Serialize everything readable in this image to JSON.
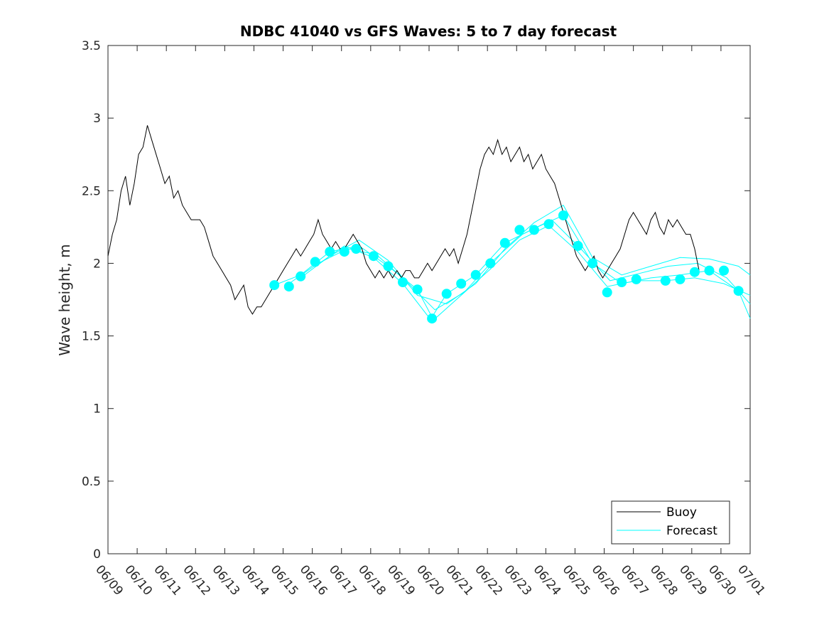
{
  "chart_data": {
    "type": "line",
    "title": "NDBC 41040 vs GFS Waves: 5 to 7 day forecast",
    "xlabel": "",
    "ylabel": "Wave height, m",
    "xlim": [
      "06/09",
      "07/01"
    ],
    "ylim": [
      0,
      3.5
    ],
    "x_ticks": [
      "06/09",
      "06/10",
      "06/11",
      "06/12",
      "06/13",
      "06/14",
      "06/15",
      "06/16",
      "06/17",
      "06/18",
      "06/19",
      "06/20",
      "06/21",
      "06/22",
      "06/23",
      "06/24",
      "06/25",
      "06/26",
      "06/27",
      "06/28",
      "06/29",
      "06/30",
      "07/01"
    ],
    "y_ticks": [
      "0",
      "0.5",
      "1",
      "1.5",
      "2",
      "2.5",
      "3",
      "3.5"
    ],
    "grid": false,
    "legend_position": "bottom-right",
    "colors": {
      "buoy": "#000000",
      "forecast": "#00ffff",
      "axes": "#262626"
    },
    "legend": [
      {
        "label": "Buoy",
        "color": "#000000"
      },
      {
        "label": "Forecast",
        "color": "#00ffff"
      }
    ],
    "series": [
      {
        "name": "Buoy",
        "color": "#000000",
        "points": [
          [
            0.0,
            2.05
          ],
          [
            0.15,
            2.2
          ],
          [
            0.3,
            2.3
          ],
          [
            0.45,
            2.5
          ],
          [
            0.6,
            2.6
          ],
          [
            0.75,
            2.4
          ],
          [
            0.9,
            2.55
          ],
          [
            1.05,
            2.75
          ],
          [
            1.2,
            2.8
          ],
          [
            1.35,
            2.95
          ],
          [
            1.5,
            2.85
          ],
          [
            1.65,
            2.75
          ],
          [
            1.8,
            2.65
          ],
          [
            1.95,
            2.55
          ],
          [
            2.1,
            2.6
          ],
          [
            2.25,
            2.45
          ],
          [
            2.4,
            2.5
          ],
          [
            2.55,
            2.4
          ],
          [
            2.7,
            2.35
          ],
          [
            2.85,
            2.3
          ],
          [
            3.0,
            2.3
          ],
          [
            3.15,
            2.3
          ],
          [
            3.3,
            2.25
          ],
          [
            3.45,
            2.15
          ],
          [
            3.6,
            2.05
          ],
          [
            3.75,
            2.0
          ],
          [
            3.9,
            1.95
          ],
          [
            4.05,
            1.9
          ],
          [
            4.2,
            1.85
          ],
          [
            4.35,
            1.75
          ],
          [
            4.5,
            1.8
          ],
          [
            4.65,
            1.85
          ],
          [
            4.8,
            1.7
          ],
          [
            4.95,
            1.65
          ],
          [
            5.1,
            1.7
          ],
          [
            5.25,
            1.7
          ],
          [
            5.4,
            1.75
          ],
          [
            5.55,
            1.8
          ],
          [
            5.7,
            1.85
          ],
          [
            5.85,
            1.9
          ],
          [
            6.0,
            1.95
          ],
          [
            6.15,
            2.0
          ],
          [
            6.3,
            2.05
          ],
          [
            6.45,
            2.1
          ],
          [
            6.6,
            2.05
          ],
          [
            6.75,
            2.1
          ],
          [
            6.9,
            2.15
          ],
          [
            7.05,
            2.2
          ],
          [
            7.2,
            2.3
          ],
          [
            7.35,
            2.2
          ],
          [
            7.5,
            2.15
          ],
          [
            7.65,
            2.1
          ],
          [
            7.8,
            2.15
          ],
          [
            7.95,
            2.1
          ],
          [
            8.1,
            2.1
          ],
          [
            8.25,
            2.15
          ],
          [
            8.4,
            2.2
          ],
          [
            8.55,
            2.15
          ],
          [
            8.7,
            2.1
          ],
          [
            8.85,
            2.0
          ],
          [
            9.0,
            1.95
          ],
          [
            9.15,
            1.9
          ],
          [
            9.3,
            1.95
          ],
          [
            9.45,
            1.9
          ],
          [
            9.6,
            1.95
          ],
          [
            9.75,
            1.9
          ],
          [
            9.9,
            1.95
          ],
          [
            10.05,
            1.9
          ],
          [
            10.2,
            1.95
          ],
          [
            10.35,
            1.95
          ],
          [
            10.5,
            1.9
          ],
          [
            10.65,
            1.9
          ],
          [
            10.8,
            1.95
          ],
          [
            10.95,
            2.0
          ],
          [
            11.1,
            1.95
          ],
          [
            11.25,
            2.0
          ],
          [
            11.4,
            2.05
          ],
          [
            11.55,
            2.1
          ],
          [
            11.7,
            2.05
          ],
          [
            11.85,
            2.1
          ],
          [
            12.0,
            2.0
          ],
          [
            12.15,
            2.1
          ],
          [
            12.3,
            2.2
          ],
          [
            12.45,
            2.35
          ],
          [
            12.6,
            2.5
          ],
          [
            12.75,
            2.65
          ],
          [
            12.9,
            2.75
          ],
          [
            13.05,
            2.8
          ],
          [
            13.2,
            2.75
          ],
          [
            13.35,
            2.85
          ],
          [
            13.5,
            2.75
          ],
          [
            13.65,
            2.8
          ],
          [
            13.8,
            2.7
          ],
          [
            13.95,
            2.75
          ],
          [
            14.1,
            2.8
          ],
          [
            14.25,
            2.7
          ],
          [
            14.4,
            2.75
          ],
          [
            14.55,
            2.65
          ],
          [
            14.7,
            2.7
          ],
          [
            14.85,
            2.75
          ],
          [
            15.0,
            2.65
          ],
          [
            15.15,
            2.6
          ],
          [
            15.3,
            2.55
          ],
          [
            15.45,
            2.45
          ],
          [
            15.6,
            2.35
          ],
          [
            15.75,
            2.25
          ],
          [
            15.9,
            2.15
          ],
          [
            16.05,
            2.05
          ],
          [
            16.2,
            2.0
          ],
          [
            16.35,
            1.95
          ],
          [
            16.5,
            2.0
          ],
          [
            16.65,
            2.05
          ],
          [
            16.8,
            1.95
          ],
          [
            16.95,
            1.9
          ],
          [
            17.1,
            1.95
          ],
          [
            17.25,
            2.0
          ],
          [
            17.4,
            2.05
          ],
          [
            17.55,
            2.1
          ],
          [
            17.7,
            2.2
          ],
          [
            17.85,
            2.3
          ],
          [
            18.0,
            2.35
          ],
          [
            18.15,
            2.3
          ],
          [
            18.3,
            2.25
          ],
          [
            18.45,
            2.2
          ],
          [
            18.6,
            2.3
          ],
          [
            18.75,
            2.35
          ],
          [
            18.9,
            2.25
          ],
          [
            19.05,
            2.2
          ],
          [
            19.2,
            2.3
          ],
          [
            19.35,
            2.25
          ],
          [
            19.5,
            2.3
          ],
          [
            19.65,
            2.25
          ],
          [
            19.8,
            2.2
          ],
          [
            19.95,
            2.2
          ],
          [
            20.1,
            2.1
          ],
          [
            20.25,
            1.95
          ]
        ]
      },
      {
        "name": "Forecast",
        "color": "#00ffff",
        "markers": [
          [
            5.7,
            1.85
          ],
          [
            6.2,
            1.84
          ],
          [
            6.6,
            1.91
          ],
          [
            7.1,
            2.01
          ],
          [
            7.6,
            2.08
          ],
          [
            8.1,
            2.08
          ],
          [
            8.5,
            2.1
          ],
          [
            9.1,
            2.05
          ],
          [
            9.6,
            1.98
          ],
          [
            10.1,
            1.87
          ],
          [
            10.6,
            1.82
          ],
          [
            11.1,
            1.62
          ],
          [
            11.6,
            1.79
          ],
          [
            12.1,
            1.86
          ],
          [
            12.6,
            1.92
          ],
          [
            13.1,
            2.0
          ],
          [
            13.6,
            2.14
          ],
          [
            14.1,
            2.23
          ],
          [
            14.6,
            2.23
          ],
          [
            15.1,
            2.27
          ],
          [
            15.6,
            2.33
          ],
          [
            16.1,
            2.12
          ],
          [
            16.6,
            2.0
          ],
          [
            17.1,
            1.8
          ],
          [
            17.6,
            1.87
          ],
          [
            18.1,
            1.89
          ],
          [
            19.1,
            1.88
          ],
          [
            19.6,
            1.89
          ],
          [
            20.1,
            1.94
          ],
          [
            20.6,
            1.95
          ],
          [
            21.1,
            1.95
          ],
          [
            21.6,
            1.81
          ]
        ],
        "lines": [
          [
            [
              5.7,
              1.85
            ],
            [
              6.6,
              1.92
            ],
            [
              7.6,
              2.08
            ],
            [
              8.6,
              2.12
            ],
            [
              9.6,
              1.98
            ],
            [
              10.6,
              1.82
            ],
            [
              11.1,
              1.63
            ],
            [
              11.6,
              1.79
            ],
            [
              12.6,
              1.92
            ],
            [
              13.6,
              2.14
            ],
            [
              14.6,
              2.24
            ],
            [
              15.6,
              2.33
            ],
            [
              16.6,
              2.0
            ],
            [
              17.6,
              1.86
            ],
            [
              18.6,
              1.9
            ],
            [
              19.6,
              1.92
            ],
            [
              20.6,
              1.95
            ],
            [
              21.6,
              1.81
            ],
            [
              22.0,
              1.62
            ]
          ],
          [
            [
              6.2,
              1.86
            ],
            [
              7.2,
              2.0
            ],
            [
              8.2,
              2.1
            ],
            [
              9.2,
              2.06
            ],
            [
              10.2,
              1.88
            ],
            [
              11.2,
              1.68
            ],
            [
              12.2,
              1.8
            ],
            [
              13.2,
              2.02
            ],
            [
              14.2,
              2.2
            ],
            [
              15.2,
              2.3
            ],
            [
              16.2,
              2.1
            ],
            [
              17.2,
              1.88
            ],
            [
              18.2,
              1.93
            ],
            [
              19.2,
              1.98
            ],
            [
              20.2,
              2.0
            ],
            [
              21.2,
              1.9
            ],
            [
              22.0,
              1.72
            ]
          ],
          [
            [
              6.6,
              1.9
            ],
            [
              7.6,
              2.05
            ],
            [
              8.6,
              2.16
            ],
            [
              9.6,
              2.02
            ],
            [
              10.6,
              1.78
            ],
            [
              11.6,
              1.72
            ],
            [
              12.6,
              1.86
            ],
            [
              13.6,
              2.1
            ],
            [
              14.6,
              2.28
            ],
            [
              15.6,
              2.4
            ],
            [
              16.6,
              2.04
            ],
            [
              17.6,
              1.92
            ],
            [
              18.6,
              1.98
            ],
            [
              19.6,
              2.04
            ],
            [
              20.6,
              2.03
            ],
            [
              21.6,
              1.98
            ],
            [
              22.0,
              1.92
            ]
          ],
          [
            [
              7.1,
              1.98
            ],
            [
              8.1,
              2.12
            ],
            [
              9.1,
              2.04
            ],
            [
              10.1,
              1.86
            ],
            [
              11.1,
              1.6
            ],
            [
              12.1,
              1.78
            ],
            [
              13.1,
              1.96
            ],
            [
              14.1,
              2.16
            ],
            [
              15.1,
              2.26
            ],
            [
              16.1,
              2.08
            ],
            [
              17.1,
              1.84
            ],
            [
              18.1,
              1.88
            ],
            [
              19.1,
              1.88
            ],
            [
              20.1,
              1.9
            ],
            [
              21.1,
              1.86
            ],
            [
              22.0,
              1.78
            ]
          ]
        ]
      }
    ]
  }
}
